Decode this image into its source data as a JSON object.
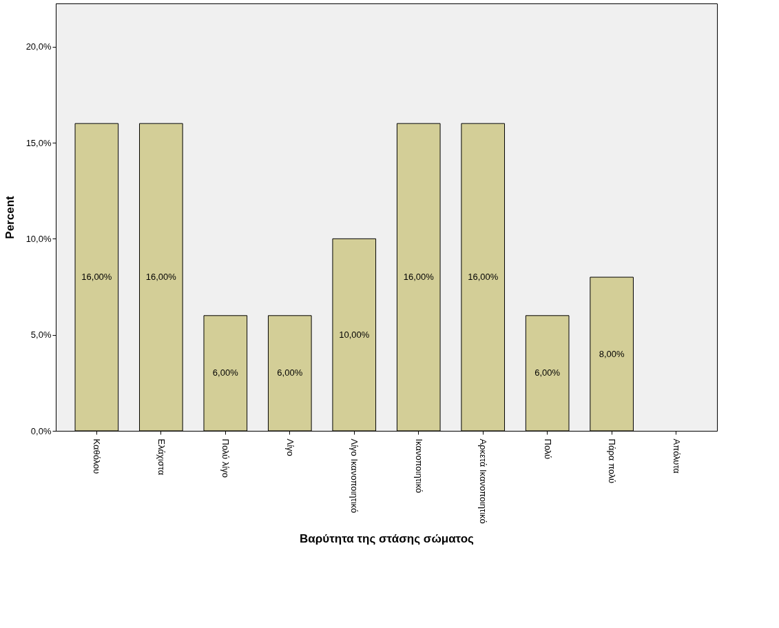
{
  "chart_data": {
    "type": "bar",
    "xlabel": "Βαρύτητα της στάσης σώματος",
    "ylabel": "Percent",
    "categories": [
      "Καθόλου",
      "Ελάχιστα",
      "Πολύ λίγο",
      "Λίγο",
      "Λίγο Ικανοποιητικό",
      "Ικανοποιητικό",
      "Αρκετά Ικανοποιητικό",
      "Πολύ",
      "Πάρα πολύ",
      "Απόλυτα"
    ],
    "values": [
      16,
      16,
      6,
      6,
      10,
      16,
      16,
      6,
      8,
      null
    ],
    "value_labels": [
      "16,00%",
      "16,00%",
      "6,00%",
      "6,00%",
      "10,00%",
      "16,00%",
      "16,00%",
      "6,00%",
      "8,00%",
      null
    ],
    "color": "#d3ce97",
    "ylim": [
      0,
      22.25
    ],
    "yticks": [
      {
        "value": 0,
        "label": "0,0%"
      },
      {
        "value": 5,
        "label": "5,0%"
      },
      {
        "value": 10,
        "label": "10,0%"
      },
      {
        "value": 15,
        "label": "15,0%"
      },
      {
        "value": 20,
        "label": "20,0%"
      }
    ],
    "grid": false
  }
}
